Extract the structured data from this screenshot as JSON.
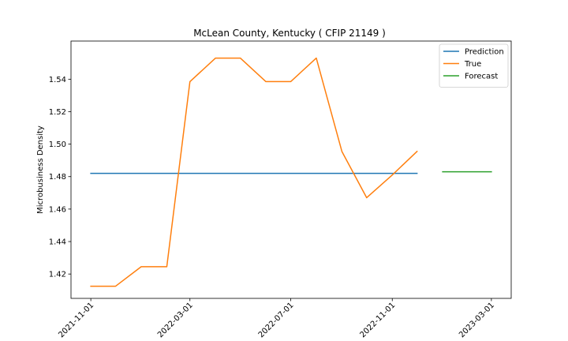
{
  "chart_data": {
    "type": "line",
    "title": "McLean County, Kentucky ( CFIP 21149 )",
    "xlabel": "",
    "ylabel": "Microbusiness Density",
    "x_range": [
      "2021-10-08",
      "2023-03-25"
    ],
    "ylim": [
      1.405,
      1.5635
    ],
    "x_ticks": [
      "2021-11-01",
      "2022-03-01",
      "2022-07-01",
      "2022-11-01",
      "2023-03-01"
    ],
    "y_ticks": [
      1.42,
      1.44,
      1.46,
      1.48,
      1.5,
      1.52,
      1.54
    ],
    "grid": false,
    "legend_position": "top-right",
    "series": [
      {
        "name": "Prediction",
        "color": "#1f77b4",
        "x": [
          "2021-11-01",
          "2022-12-01"
        ],
        "y": [
          1.482,
          1.482
        ]
      },
      {
        "name": "True",
        "color": "#ff7f0e",
        "x": [
          "2021-11-01",
          "2021-12-01",
          "2022-01-01",
          "2022-02-01",
          "2022-03-01",
          "2022-04-01",
          "2022-05-01",
          "2022-06-01",
          "2022-07-01",
          "2022-08-01",
          "2022-09-01",
          "2022-10-01",
          "2022-11-01",
          "2022-12-01"
        ],
        "y": [
          1.4125,
          1.4125,
          1.4245,
          1.4245,
          1.5385,
          1.553,
          1.553,
          1.5385,
          1.5385,
          1.553,
          1.4955,
          1.467,
          1.481,
          1.4955
        ]
      },
      {
        "name": "Forecast",
        "color": "#2ca02c",
        "x": [
          "2023-01-01",
          "2023-03-01"
        ],
        "y": [
          1.483,
          1.483
        ]
      }
    ]
  }
}
